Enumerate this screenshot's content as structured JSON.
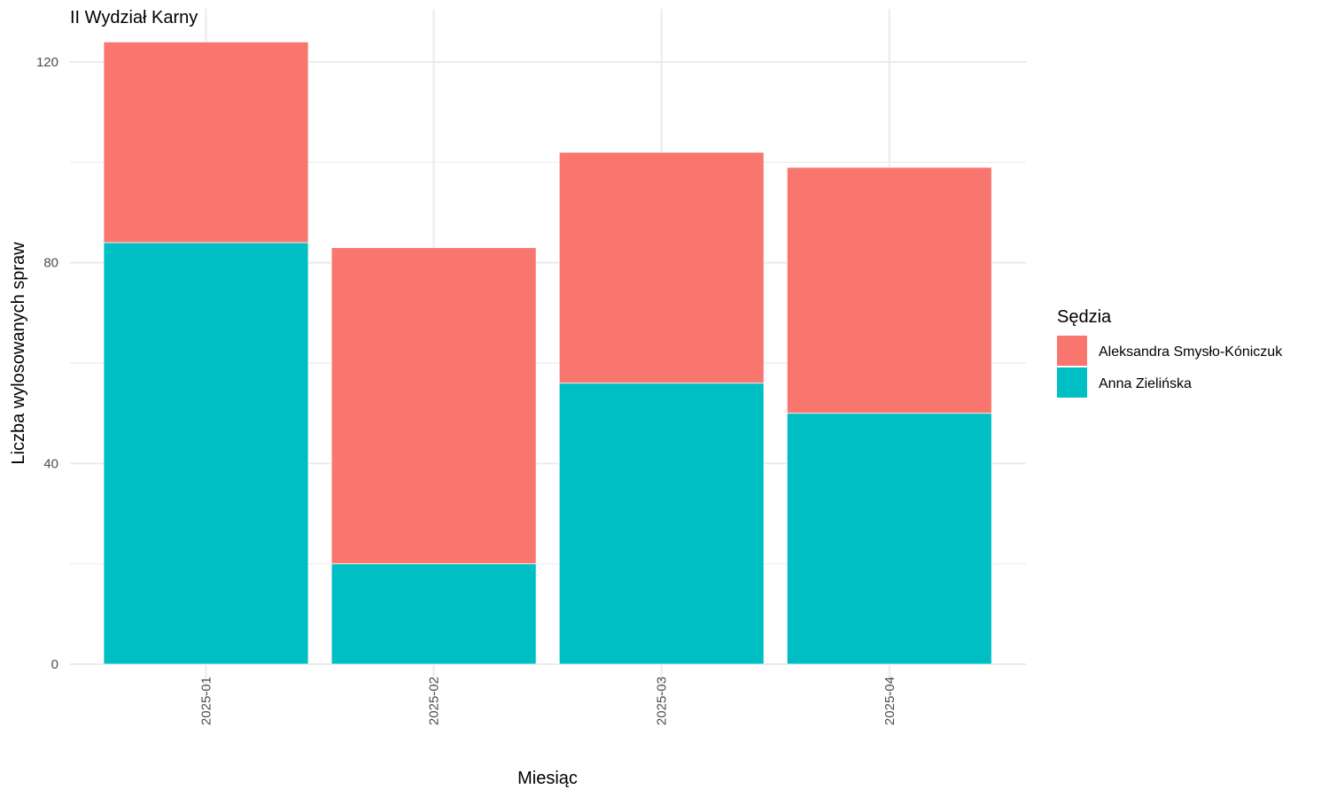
{
  "chart_data": {
    "type": "bar",
    "stacked": true,
    "title": "II Wydział Karny",
    "xlabel": "Miesiąc",
    "ylabel": "Liczba wylosowanych spraw",
    "categories": [
      "2025-01",
      "2025-02",
      "2025-03",
      "2025-04"
    ],
    "series": [
      {
        "name": "Aleksandra Smysło-Kóniczuk",
        "values": [
          40,
          63,
          46,
          49
        ],
        "color": "#F8766D"
      },
      {
        "name": "Anna Zielińska",
        "values": [
          84,
          20,
          56,
          50
        ],
        "color": "#00BFC4"
      }
    ],
    "stack_order_bottom_to_top": [
      "Anna Zielińska",
      "Aleksandra Smysło-Kóniczuk"
    ],
    "yticks": [
      0,
      40,
      80,
      120
    ],
    "ylim": [
      0,
      124
    ],
    "grid": true,
    "legend": {
      "title": "Sędzia",
      "position": "right"
    },
    "grid_color": "#ebebeb"
  }
}
